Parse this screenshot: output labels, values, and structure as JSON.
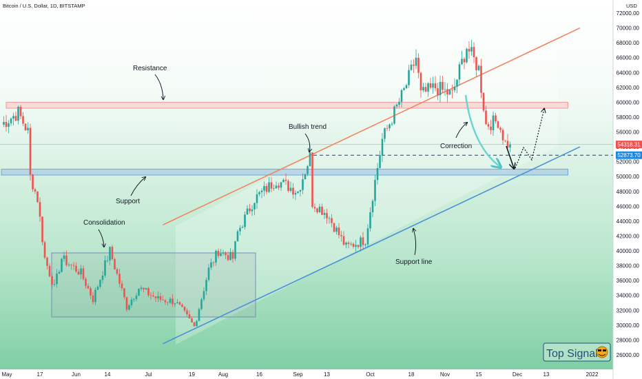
{
  "header": {
    "symbol": "Bitcoin / U.S. Dollar, 1D, BITSTAMP",
    "currency": "USD"
  },
  "chart_data": {
    "type": "candlestick",
    "title": "Bitcoin / U.S. Dollar, 1D, BITSTAMP",
    "y_axis": {
      "unit": "USD",
      "ylim": [
        25000,
        73000
      ],
      "ticks": [
        "72000.00",
        "70000.00",
        "68000.00",
        "66000.00",
        "64000.00",
        "62000.00",
        "60000.00",
        "58000.00",
        "56000.00",
        "54000.00",
        "52000.00",
        "50000.00",
        "48000.00",
        "46000.00",
        "44000.00",
        "42000.00",
        "40000.00",
        "38000.00",
        "36000.00",
        "34000.00",
        "32000.00",
        "30000.00",
        "28000.00",
        "26000.00"
      ],
      "price_labels": [
        {
          "label": "54318.31",
          "value": 54318.31,
          "color": "#ef5350"
        },
        {
          "label": "52873.70",
          "value": 52873.7,
          "color": "#1e88e5"
        }
      ]
    },
    "x_axis": {
      "labels": [
        "May",
        "17",
        "Jun",
        "14",
        "Jul",
        "19",
        "Aug",
        "16",
        "Sep",
        "13",
        "Oct",
        "18",
        "Nov",
        "15",
        "Dec",
        "13",
        "2022"
      ]
    },
    "series": [
      {
        "type": "candles",
        "up_color": "#26a69a",
        "down_color": "#ef5350",
        "anchors": [
          [
            "May 1",
            57000
          ],
          [
            "May 8",
            58600
          ],
          [
            "May 12",
            56000
          ],
          [
            "May 13",
            50000
          ],
          [
            "May 16",
            47000
          ],
          [
            "May 19",
            39000
          ],
          [
            "May 23",
            35000
          ],
          [
            "May 26",
            39000
          ],
          [
            "Jun 3",
            37000
          ],
          [
            "Jun 8",
            33500
          ],
          [
            "Jun 15",
            40000
          ],
          [
            "Jun 22",
            32500
          ],
          [
            "Jun 27",
            35000
          ],
          [
            "Jul 5",
            33500
          ],
          [
            "Jul 12",
            33200
          ],
          [
            "Jul 20",
            29800
          ],
          [
            "Jul 26",
            37500
          ],
          [
            "Jul 30",
            40000
          ],
          [
            "Aug 5",
            39000
          ],
          [
            "Aug 7",
            42500
          ],
          [
            "Aug 14",
            47000
          ],
          [
            "Aug 23",
            49500
          ],
          [
            "Sep 1",
            48000
          ],
          [
            "Sep 6",
            52700
          ],
          [
            "Sep 7",
            46500
          ],
          [
            "Sep 13",
            45000
          ],
          [
            "Sep 21",
            40500
          ],
          [
            "Sep 29",
            41500
          ],
          [
            "Oct 2",
            47500
          ],
          [
            "Oct 6",
            55000
          ],
          [
            "Oct 15",
            61500
          ],
          [
            "Oct 20",
            66000
          ],
          [
            "Oct 22",
            61000
          ],
          [
            "Oct 28",
            62000
          ],
          [
            "Nov 4",
            61000
          ],
          [
            "Nov 10",
            67500
          ],
          [
            "Nov 15",
            64500
          ],
          [
            "Nov 18",
            57000
          ],
          [
            "Nov 23",
            57500
          ],
          [
            "Nov 26",
            54500
          ],
          [
            "Nov 28",
            54318
          ]
        ]
      }
    ],
    "levels": [
      {
        "name": "Resistance",
        "from": "May 3",
        "to": "Dec 22",
        "low": 59200,
        "high": 60000
      },
      {
        "name": "Support",
        "from": "May 1",
        "to": "Dec 22",
        "low": 50200,
        "high": 51000
      }
    ],
    "trendlines": [
      {
        "name": "Bullish trend",
        "points": [
          [
            "Jul 7",
            43500
          ],
          [
            "Dec 27",
            70000
          ]
        ],
        "color": "#f4845f"
      },
      {
        "name": "Support line",
        "points": [
          [
            "Jul 7",
            27500
          ],
          [
            "Dec 27",
            54000
          ]
        ],
        "color": "#4a90d9"
      }
    ],
    "annotations": [
      "Resistance",
      "Support",
      "Consolidation",
      "Bullish trend",
      "Correction",
      "Support line"
    ],
    "watermark": "Top Signals"
  }
}
